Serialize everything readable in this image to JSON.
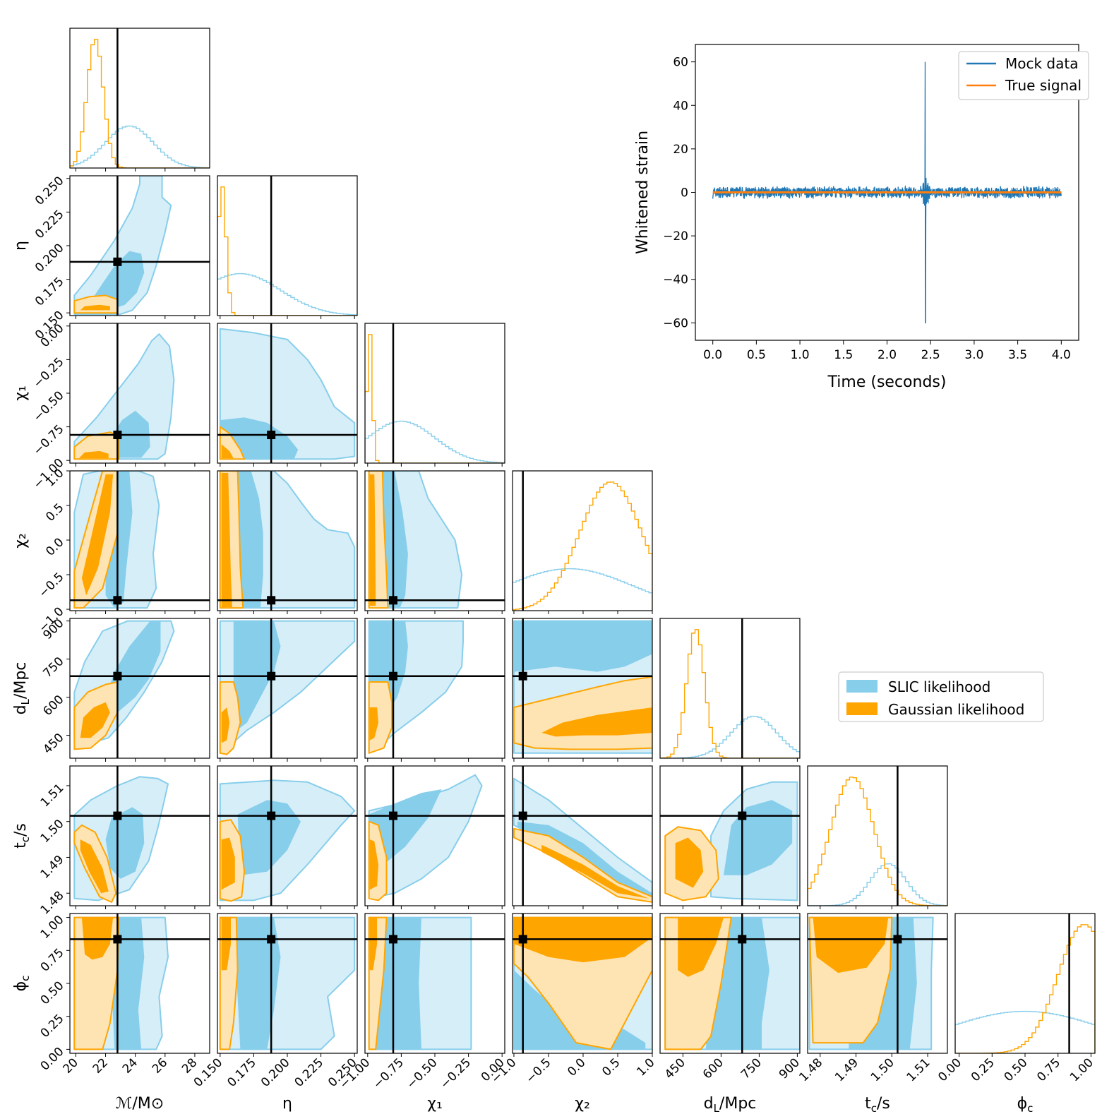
{
  "chart_data": [
    {
      "type": "corner",
      "parameters": [
        {
          "key": "mc",
          "label": "ℳ/M⊙",
          "lim": [
            19.6,
            29.0
          ],
          "ticks": [
            20,
            22,
            24,
            26,
            28
          ],
          "tick_labels": [
            "20",
            "22",
            "24",
            "26",
            "28"
          ],
          "truth": 22.8
        },
        {
          "key": "eta",
          "label": "η",
          "lim": [
            0.148,
            0.252
          ],
          "ticks": [
            0.15,
            0.175,
            0.2,
            0.225,
            0.25
          ],
          "tick_labels": [
            "0.150",
            "0.175",
            "0.200",
            "0.225",
            "0.250"
          ],
          "truth": 0.188
        },
        {
          "key": "chi1",
          "label": "χ₁",
          "lim": [
            -1.02,
            0.02
          ],
          "ticks": [
            -1.0,
            -0.75,
            -0.5,
            -0.25,
            0.0
          ],
          "tick_labels": [
            "−1.00",
            "−0.75",
            "−0.50",
            "−0.25",
            "0.00"
          ],
          "truth": -0.81
        },
        {
          "key": "chi2",
          "label": "χ₂",
          "lim": [
            -1.02,
            1.0
          ],
          "ticks": [
            -1.0,
            -0.5,
            0.0,
            0.5,
            1.0
          ],
          "tick_labels": [
            "−1.0",
            "−0.5",
            "0.0",
            "0.5",
            "1.0"
          ],
          "truth": -0.87
        },
        {
          "key": "dl",
          "label": "d_L/Mpc",
          "lim": [
            360,
            910
          ],
          "ticks": [
            450,
            600,
            750,
            900
          ],
          "tick_labels": [
            "450",
            "600",
            "750",
            "900"
          ],
          "truth": 683
        },
        {
          "key": "tc",
          "label": "t_c/s",
          "lim": [
            1.4765,
            1.5155
          ],
          "ticks": [
            1.48,
            1.49,
            1.5,
            1.51
          ],
          "tick_labels": [
            "1.48",
            "1.49",
            "1.50",
            "1.51"
          ],
          "truth": 1.5016
        },
        {
          "key": "phic",
          "label": "ϕ_c",
          "lim": [
            -0.03,
            1.03
          ],
          "ticks": [
            0.0,
            0.25,
            0.5,
            0.75,
            1.0
          ],
          "tick_labels": [
            "0.00",
            "0.25",
            "0.50",
            "0.75",
            "1.00"
          ],
          "truth": 0.835
        }
      ],
      "series": [
        {
          "name": "SLIC likelihood",
          "color": "#87ceeb",
          "light_color": "#d6eef8"
        },
        {
          "name": "Gaussian likelihood",
          "color": "#ffa500",
          "light_color": "#ffe4b3"
        }
      ],
      "marginals": {
        "mc": {
          "slic": {
            "mean": 23.6,
            "sd": 1.6
          },
          "gauss": {
            "mean": 21.3,
            "sd": 0.55
          }
        },
        "eta": {
          "slic": {
            "mean": 0.165,
            "sd": 0.03
          },
          "gauss": {
            "mean": 0.1515,
            "sd": 0.003
          }
        },
        "chi1": {
          "slic": {
            "mean": -0.75,
            "sd": 0.25
          },
          "gauss": {
            "mean": -0.985,
            "sd": 0.02
          }
        },
        "chi2": {
          "slic": {
            "mean": -0.2,
            "sd": 0.9
          },
          "gauss": {
            "mean": 0.4,
            "sd": 0.45
          }
        },
        "dl": {
          "slic": {
            "mean": 730,
            "sd": 90
          },
          "gauss": {
            "mean": 500,
            "sd": 35
          }
        },
        "tc": {
          "slic": {
            "mean": 1.499,
            "sd": 0.005
          },
          "gauss": {
            "mean": 1.489,
            "sd": 0.006
          }
        },
        "phic": {
          "slic": {
            "mean": 0.5,
            "sd": 0.6
          },
          "gauss": {
            "mean": 0.95,
            "sd": 0.2
          }
        }
      },
      "legend": {
        "placement": "middle-right"
      }
    },
    {
      "type": "line",
      "xlabel": "Time (seconds)",
      "ylabel": "Whitened strain",
      "xlim": [
        -0.2,
        4.2
      ],
      "ylim": [
        -68,
        68
      ],
      "xticks": [
        0.0,
        0.5,
        1.0,
        1.5,
        2.0,
        2.5,
        3.0,
        3.5,
        4.0
      ],
      "xtick_labels": [
        "0.0",
        "0.5",
        "1.0",
        "1.5",
        "2.0",
        "2.5",
        "3.0",
        "3.5",
        "4.0"
      ],
      "yticks": [
        -60,
        -40,
        -20,
        0,
        20,
        40,
        60
      ],
      "ytick_labels": [
        "−60",
        "−40",
        "−20",
        "0",
        "20",
        "40",
        "60"
      ],
      "series": [
        {
          "name": "Mock data",
          "color": "#1f77b4",
          "x_range": [
            0,
            4
          ],
          "noise_amplitude": 3,
          "peak_time": 2.44,
          "peak_max": 60,
          "peak_min": -60
        },
        {
          "name": "True signal",
          "color": "#ff7f0e",
          "x_range": [
            0,
            4
          ],
          "value": 0
        }
      ],
      "legend": {
        "placement": "upper right"
      }
    }
  ]
}
